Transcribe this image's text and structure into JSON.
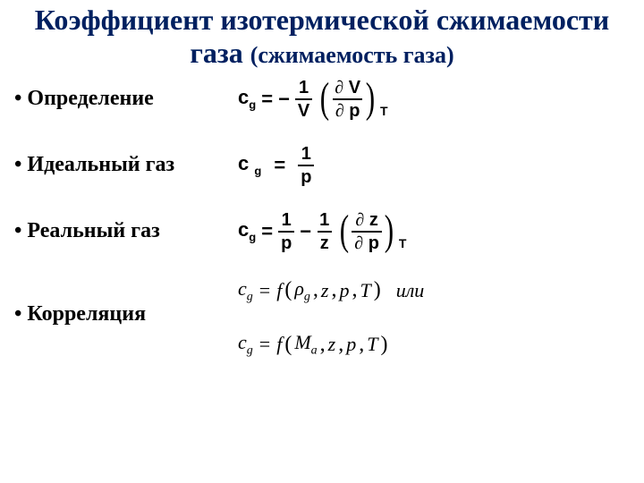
{
  "title_main": "Коэффициент изотермической сжимаемости газа",
  "title_sub": "(сжимаемость газа)",
  "rows": {
    "definition": {
      "label": "Определение"
    },
    "ideal": {
      "label": "Идеальный газ"
    },
    "real": {
      "label": "Реальный газ"
    },
    "corr": {
      "label": "Корреляция"
    }
  },
  "sym": {
    "cg": "c",
    "g": "g",
    "eq": "=",
    "minus": "−",
    "one": "1",
    "V": "V",
    "p": "p",
    "z": "z",
    "T": "T",
    "partial": "∂",
    "f": "f",
    "rho": "ρ",
    "M": "M",
    "a": "a",
    "comma": ",",
    "ili": "или"
  },
  "colors": {
    "title": "#002060",
    "text": "#000000",
    "bg": "#ffffff"
  },
  "fonts": {
    "title_size": 32,
    "sub_size": 26,
    "bullet_size": 24,
    "formula_size": 22
  }
}
